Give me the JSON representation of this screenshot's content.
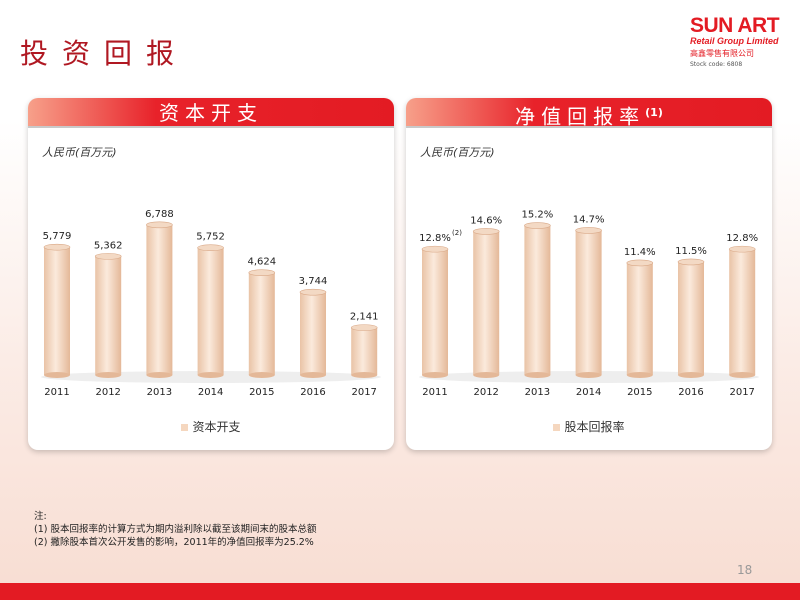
{
  "title": "投资回报",
  "logo": {
    "brand": "SUN ART",
    "sub": "Retail Group Limited",
    "cn": "高鑫零售有限公司",
    "stock": "Stock code: 6808"
  },
  "colors": {
    "accent": "#e31b23",
    "bar": "#f5d7bf"
  },
  "chart_data": [
    {
      "type": "bar",
      "title": "资本开支",
      "title_sup": "",
      "ylabel": "人民币(百万元)",
      "categories": [
        "2011",
        "2012",
        "2013",
        "2014",
        "2015",
        "2016",
        "2017"
      ],
      "values": [
        5779,
        5362,
        6788,
        5752,
        4624,
        3744,
        2141
      ],
      "labels": [
        "5,779",
        "5,362",
        "6,788",
        "5,752",
        "4,624",
        "3,744",
        "2,141"
      ],
      "legend": "资本开支",
      "ylim": [
        0,
        8000
      ],
      "grid": false,
      "legend_position": "bottom"
    },
    {
      "type": "bar",
      "title": "净值回报率",
      "title_sup": "(1)",
      "ylabel": "人民币(百万元)",
      "categories": [
        "2011",
        "2012",
        "2013",
        "2014",
        "2015",
        "2016",
        "2017"
      ],
      "values": [
        12.8,
        14.6,
        15.2,
        14.7,
        11.4,
        11.5,
        12.8
      ],
      "labels": [
        "12.8%",
        "14.6%",
        "15.2%",
        "14.7%",
        "11.4%",
        "11.5%",
        "12.8%"
      ],
      "annotation": "(2)",
      "legend": "股本回报率",
      "ylim": [
        0,
        18
      ],
      "grid": false,
      "legend_position": "bottom"
    }
  ],
  "notes": {
    "head": "注:",
    "n1": "(1) 股本回报率的计算方式为期内溢利除以截至该期间末的股本总额",
    "n2": "(2) 撇除股本首次公开发售的影响，2011年的净值回报率为25.2%"
  },
  "page": "18"
}
